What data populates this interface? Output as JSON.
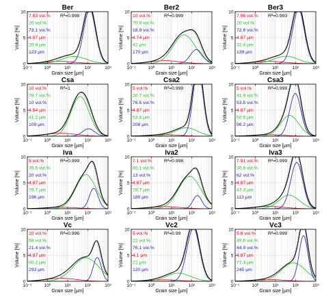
{
  "colors": {
    "total": "#000000",
    "fine": "#e8001c",
    "medium": "#20c020",
    "coarse": "#1a1ab8",
    "dotted": "#555555",
    "grid": "#d6d6d6"
  },
  "chart_data": {
    "type": "line",
    "xscale": "log",
    "xlim": [
      0.1,
      1000
    ],
    "ylim": [
      0,
      10
    ],
    "xticks": [
      "10⁻¹",
      "10⁰",
      "10¹",
      "10²",
      "10³"
    ],
    "yticks": [
      "0",
      "5",
      "10"
    ],
    "xlabel": "Grain size [μm]",
    "ylabel": "Volume [%]",
    "panels": [
      {
        "title": "Ber",
        "r2": "R²=0.998",
        "labels": {
          "fine_vol": "7.83 vol.%",
          "medium_vol": "20 vol.%",
          "coarse_vol": "73.1 vol.%",
          "fine_size": "4.07 μm",
          "medium_size": "20.8 μm",
          "coarse_size": "123 μm"
        },
        "components": [
          {
            "vol": 7.83,
            "mode": 4.07,
            "s": 0.75
          },
          {
            "vol": 20,
            "mode": 20.8,
            "s": 0.62
          },
          {
            "vol": 73.1,
            "mode": 123,
            "s": 0.3
          }
        ]
      },
      {
        "title": "Ber2",
        "r2": "R²=0.999",
        "labels": {
          "fine_vol": "10 vol.%",
          "medium_vol": "70.8 vol.%",
          "coarse_vol": "18.9 vol.%",
          "fine_size": "4.74 μm",
          "medium_size": "42 μm",
          "coarse_size": "170 μm"
        },
        "components": [
          {
            "vol": 10,
            "mode": 4.74,
            "s": 0.75
          },
          {
            "vol": 70.8,
            "mode": 42,
            "s": 0.55
          },
          {
            "vol": 18.9,
            "mode": 170,
            "s": 0.3
          }
        ]
      },
      {
        "title": "Ber3",
        "r2": "R²=0.993",
        "labels": {
          "fine_vol": "7.96 vol.%",
          "medium_vol": "20 vol.%",
          "coarse_vol": "72.6 vol.%",
          "fine_size": "4.87 μm",
          "medium_size": "32.4 μm",
          "coarse_size": "139 μm"
        },
        "components": [
          {
            "vol": 7.96,
            "mode": 4.87,
            "s": 0.75
          },
          {
            "vol": 20,
            "mode": 32.4,
            "s": 0.6
          },
          {
            "vol": 72.6,
            "mode": 139,
            "s": 0.3
          }
        ]
      },
      {
        "title": "Csa",
        "r2": "R²=1",
        "labels": {
          "fine_vol": "10 vol.%",
          "medium_vol": "79.7 vol.%",
          "coarse_vol": "10 vol.%",
          "fine_size": "4.54 μm",
          "medium_size": "41.2 μm",
          "coarse_size": "109 μm"
        },
        "components": [
          {
            "vol": 10,
            "mode": 4.54,
            "s": 0.75
          },
          {
            "vol": 79.7,
            "mode": 41.2,
            "s": 0.45
          },
          {
            "vol": 10,
            "mode": 109,
            "s": 0.3
          }
        ]
      },
      {
        "title": "Csa2",
        "r2": "R²=0.999",
        "labels": {
          "fine_vol": "5 vol.%",
          "medium_vol": "20.7 vol.%",
          "coarse_vol": "76.5 vol.%",
          "fine_size": "4.87 μm",
          "medium_size": "53.8 μm",
          "coarse_size": "208 μm"
        },
        "components": [
          {
            "vol": 5,
            "mode": 4.87,
            "s": 0.75
          },
          {
            "vol": 20.7,
            "mode": 53.8,
            "s": 0.55
          },
          {
            "vol": 76.5,
            "mode": 208,
            "s": 0.25
          }
        ]
      },
      {
        "title": "Csa3",
        "r2": "R²=0.999",
        "labels": {
          "fine_vol": "5 vol.%",
          "medium_vol": "41.9 vol.%",
          "coarse_vol": "53.5 vol.%",
          "fine_size": "4.87 μm",
          "medium_size": "50.5 μm",
          "coarse_size": "96.2 μm"
        },
        "components": [
          {
            "vol": 5,
            "mode": 4.87,
            "s": 0.75
          },
          {
            "vol": 41.9,
            "mode": 50.5,
            "s": 0.45
          },
          {
            "vol": 53.5,
            "mode": 96.2,
            "s": 0.28
          }
        ]
      },
      {
        "title": "Iva",
        "r2": "R²=0.999",
        "labels": {
          "fine_vol": "5 vol.%",
          "medium_vol": "76.5 vol.%",
          "coarse_vol": "20 vol.%",
          "fine_size": "4.87 μm",
          "medium_size": "79.7 μm",
          "coarse_size": "196 μm"
        },
        "components": [
          {
            "vol": 5,
            "mode": 4.87,
            "s": 0.75
          },
          {
            "vol": 76.5,
            "mode": 79.7,
            "s": 0.5
          },
          {
            "vol": 20,
            "mode": 196,
            "s": 0.22
          }
        ]
      },
      {
        "title": "Iva2",
        "r2": "R²=0.998",
        "labels": {
          "fine_vol": "7.1 vol.%",
          "medium_vol": "80.1 vol.%",
          "coarse_vol": "13 vol.%",
          "fine_size": "4.87 μm",
          "medium_size": "78.7 μm",
          "coarse_size": "189 μm"
        },
        "components": [
          {
            "vol": 7.1,
            "mode": 4.87,
            "s": 0.75
          },
          {
            "vol": 80.1,
            "mode": 78.7,
            "s": 0.55
          },
          {
            "vol": 13,
            "mode": 189,
            "s": 0.22
          }
        ]
      },
      {
        "title": "Iva3",
        "r2": "R²=0.999",
        "labels": {
          "fine_vol": "7.91 vol.%",
          "medium_vol": "30.6 vol.%",
          "coarse_vol": "62 vol.%",
          "fine_size": "4.87 μm",
          "medium_size": "47.3 μm",
          "coarse_size": "113 μm"
        },
        "components": [
          {
            "vol": 7.91,
            "mode": 4.87,
            "s": 0.75
          },
          {
            "vol": 30.6,
            "mode": 47.3,
            "s": 0.5
          },
          {
            "vol": 62,
            "mode": 113,
            "s": 0.3
          }
        ]
      },
      {
        "title": "Vc",
        "r2": "R²=0.996",
        "labels": {
          "fine_vol": "10 vol.%",
          "medium_vol": "68 vol.%",
          "coarse_vol": "21.4 vol.%",
          "fine_size": "4.87 μm",
          "medium_size": "80.2 μm",
          "coarse_size": "293 μm"
        },
        "components": [
          {
            "vol": 10,
            "mode": 4.87,
            "s": 0.75
          },
          {
            "vol": 68,
            "mode": 80.2,
            "s": 0.65
          },
          {
            "vol": 21.4,
            "mode": 293,
            "s": 0.2
          }
        ]
      },
      {
        "title": "Vc2",
        "r2": "R²=0.99",
        "labels": {
          "fine_vol": "5 vol.%",
          "medium_vol": "22 vol.%",
          "coarse_vol": "76.1 vol.%",
          "fine_size": "4.1 μm",
          "medium_size": "22 μm",
          "coarse_size": "120 μm"
        },
        "components": [
          {
            "vol": 5,
            "mode": 4.1,
            "s": 0.75
          },
          {
            "vol": 22,
            "mode": 22,
            "s": 0.6
          },
          {
            "vol": 76.1,
            "mode": 120,
            "s": 0.32
          }
        ]
      },
      {
        "title": "Vc3",
        "r2": "R²=0.999",
        "labels": {
          "fine_vol": "5.8 vol.%",
          "medium_vol": "49.6 vol.%",
          "coarse_vol": "44.9 vol.%",
          "fine_size": "4.87 μm",
          "medium_size": "77.3 μm",
          "coarse_size": "245 μm"
        },
        "components": [
          {
            "vol": 5.8,
            "mode": 4.87,
            "s": 0.75
          },
          {
            "vol": 49.6,
            "mode": 77.3,
            "s": 0.6
          },
          {
            "vol": 44.9,
            "mode": 245,
            "s": 0.22
          }
        ]
      }
    ]
  }
}
